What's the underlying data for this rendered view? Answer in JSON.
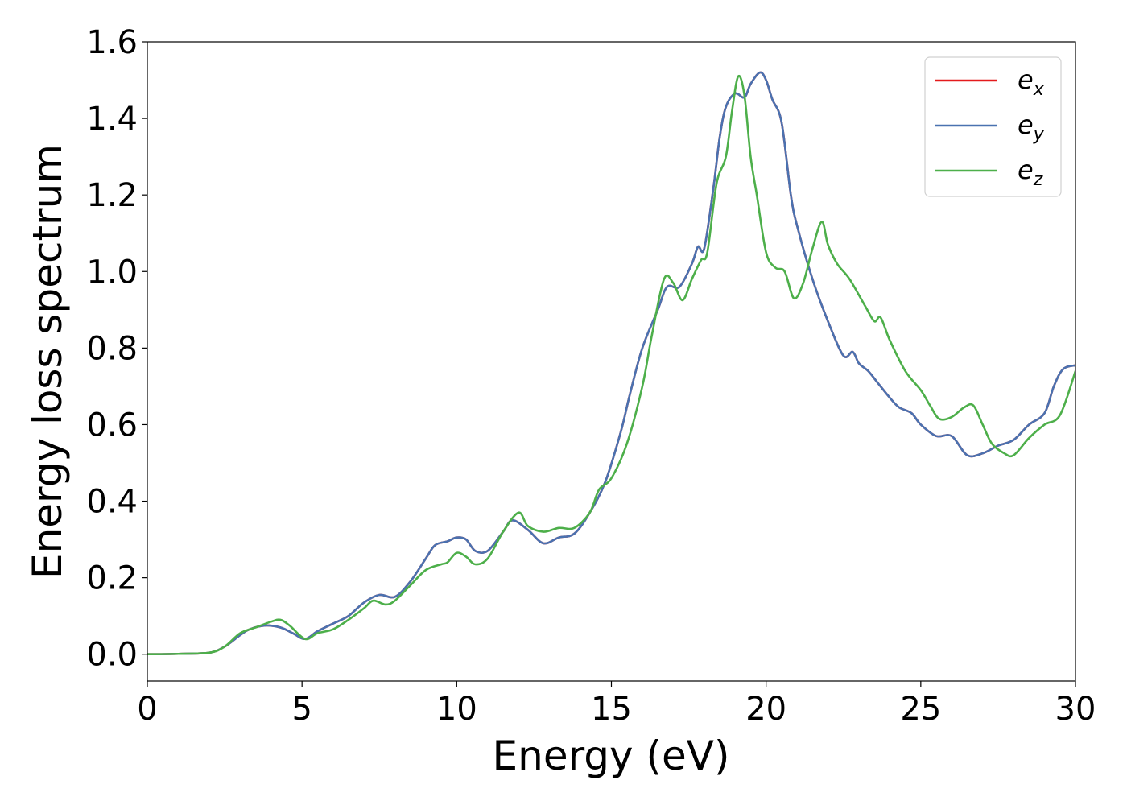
{
  "chart_data": {
    "type": "line",
    "xlabel": "Energy (eV)",
    "ylabel": "Energy loss spectrum",
    "xlim": [
      0,
      30
    ],
    "ylim": [
      -0.07,
      1.6
    ],
    "x_ticks": [
      0,
      5,
      10,
      15,
      20,
      25,
      30
    ],
    "y_ticks": [
      0.0,
      0.2,
      0.4,
      0.6,
      0.8,
      1.0,
      1.2,
      1.4,
      1.6
    ],
    "x_tick_labels": [
      "0",
      "5",
      "10",
      "15",
      "20",
      "25",
      "30"
    ],
    "y_tick_labels": [
      "0.0",
      "0.2",
      "0.4",
      "0.6",
      "0.8",
      "1.0",
      "1.2",
      "1.4",
      "1.6"
    ],
    "grid": false,
    "legend_position": "top-right",
    "series": [
      {
        "name": "e_x",
        "label_base": "e",
        "label_sub": "x",
        "color": "#e41a1c",
        "x": [
          0,
          1,
          2,
          2.5,
          3,
          3.3,
          3.8,
          4.3,
          4.7,
          5.1,
          5.5,
          6,
          6.5,
          7,
          7.5,
          8,
          8.5,
          9,
          9.3,
          9.7,
          10,
          10.3,
          10.6,
          11,
          11.5,
          11.8,
          12.3,
          12.8,
          13.3,
          13.8,
          14.3,
          14.8,
          15.3,
          15.6,
          16,
          16.5,
          16.8,
          17.2,
          17.6,
          17.8,
          18,
          18.3,
          18.5,
          18.7,
          19,
          19.3,
          19.5,
          19.8,
          20,
          20.2,
          20.5,
          20.8,
          21,
          21.5,
          22,
          22.5,
          22.8,
          23,
          23.3,
          23.6,
          24,
          24.3,
          24.7,
          25,
          25.5,
          26,
          26.5,
          27,
          27.5,
          28,
          28.5,
          29,
          29.3,
          29.6,
          30
        ],
        "values": [
          0,
          0.001,
          0.004,
          0.02,
          0.05,
          0.065,
          0.075,
          0.07,
          0.055,
          0.04,
          0.06,
          0.08,
          0.1,
          0.135,
          0.155,
          0.15,
          0.19,
          0.25,
          0.285,
          0.295,
          0.305,
          0.3,
          0.27,
          0.27,
          0.32,
          0.35,
          0.325,
          0.29,
          0.305,
          0.315,
          0.37,
          0.45,
          0.58,
          0.68,
          0.8,
          0.9,
          0.96,
          0.96,
          1.02,
          1.065,
          1.06,
          1.22,
          1.35,
          1.43,
          1.465,
          1.455,
          1.49,
          1.52,
          1.5,
          1.45,
          1.39,
          1.2,
          1.12,
          0.98,
          0.87,
          0.78,
          0.79,
          0.76,
          0.74,
          0.71,
          0.67,
          0.645,
          0.63,
          0.6,
          0.57,
          0.57,
          0.52,
          0.525,
          0.545,
          0.56,
          0.6,
          0.63,
          0.7,
          0.745,
          0.755
        ]
      },
      {
        "name": "e_y",
        "label_base": "e",
        "label_sub": "y",
        "color": "#4a72b0",
        "x": [
          0,
          1,
          2,
          2.5,
          3,
          3.3,
          3.8,
          4.3,
          4.7,
          5.1,
          5.5,
          6,
          6.5,
          7,
          7.5,
          8,
          8.5,
          9,
          9.3,
          9.7,
          10,
          10.3,
          10.6,
          11,
          11.5,
          11.8,
          12.3,
          12.8,
          13.3,
          13.8,
          14.3,
          14.8,
          15.3,
          15.6,
          16,
          16.5,
          16.8,
          17.2,
          17.6,
          17.8,
          18,
          18.3,
          18.5,
          18.7,
          19,
          19.3,
          19.5,
          19.8,
          20,
          20.2,
          20.5,
          20.8,
          21,
          21.5,
          22,
          22.5,
          22.8,
          23,
          23.3,
          23.6,
          24,
          24.3,
          24.7,
          25,
          25.5,
          26,
          26.5,
          27,
          27.5,
          28,
          28.5,
          29,
          29.3,
          29.6,
          30
        ],
        "values": [
          0,
          0.001,
          0.004,
          0.02,
          0.05,
          0.065,
          0.075,
          0.07,
          0.055,
          0.04,
          0.06,
          0.08,
          0.1,
          0.135,
          0.155,
          0.15,
          0.19,
          0.25,
          0.285,
          0.295,
          0.305,
          0.3,
          0.27,
          0.27,
          0.32,
          0.35,
          0.325,
          0.29,
          0.305,
          0.315,
          0.37,
          0.45,
          0.58,
          0.68,
          0.8,
          0.9,
          0.96,
          0.96,
          1.02,
          1.065,
          1.06,
          1.22,
          1.35,
          1.43,
          1.465,
          1.455,
          1.49,
          1.52,
          1.5,
          1.45,
          1.39,
          1.2,
          1.12,
          0.98,
          0.87,
          0.78,
          0.79,
          0.76,
          0.74,
          0.71,
          0.67,
          0.645,
          0.63,
          0.6,
          0.57,
          0.57,
          0.52,
          0.525,
          0.545,
          0.56,
          0.6,
          0.63,
          0.7,
          0.745,
          0.755
        ]
      },
      {
        "name": "e_z",
        "label_base": "e",
        "label_sub": "z",
        "color": "#4daf4a",
        "x": [
          0,
          1,
          2,
          2.5,
          3,
          3.5,
          4,
          4.3,
          4.6,
          5.1,
          5.5,
          6,
          6.5,
          7,
          7.3,
          7.7,
          8,
          8.5,
          9,
          9.5,
          9.7,
          10,
          10.3,
          10.6,
          11,
          11.5,
          12,
          12.3,
          12.8,
          13.3,
          13.8,
          14.3,
          14.6,
          15,
          15.5,
          16,
          16.3,
          16.7,
          17,
          17.3,
          17.6,
          17.9,
          18.1,
          18.4,
          18.7,
          18.9,
          19.1,
          19.3,
          19.5,
          19.7,
          20,
          20.3,
          20.6,
          20.9,
          21.2,
          21.5,
          21.8,
          22,
          22.3,
          22.7,
          23.2,
          23.5,
          23.7,
          24,
          24.5,
          25,
          25.3,
          25.6,
          26,
          26.4,
          26.7,
          27,
          27.3,
          27.7,
          28,
          28.5,
          29,
          29.5,
          30
        ],
        "values": [
          0,
          0.001,
          0.004,
          0.02,
          0.055,
          0.07,
          0.085,
          0.09,
          0.075,
          0.04,
          0.055,
          0.065,
          0.09,
          0.12,
          0.14,
          0.13,
          0.14,
          0.18,
          0.22,
          0.235,
          0.24,
          0.265,
          0.255,
          0.235,
          0.25,
          0.32,
          0.37,
          0.335,
          0.32,
          0.33,
          0.33,
          0.37,
          0.43,
          0.46,
          0.55,
          0.7,
          0.83,
          0.98,
          0.97,
          0.925,
          0.98,
          1.03,
          1.05,
          1.23,
          1.3,
          1.42,
          1.51,
          1.46,
          1.3,
          1.2,
          1.05,
          1.01,
          1.0,
          0.93,
          0.97,
          1.06,
          1.13,
          1.07,
          1.02,
          0.98,
          0.91,
          0.87,
          0.88,
          0.82,
          0.74,
          0.69,
          0.65,
          0.615,
          0.62,
          0.645,
          0.65,
          0.6,
          0.55,
          0.525,
          0.52,
          0.565,
          0.6,
          0.625,
          0.74
        ]
      }
    ]
  }
}
